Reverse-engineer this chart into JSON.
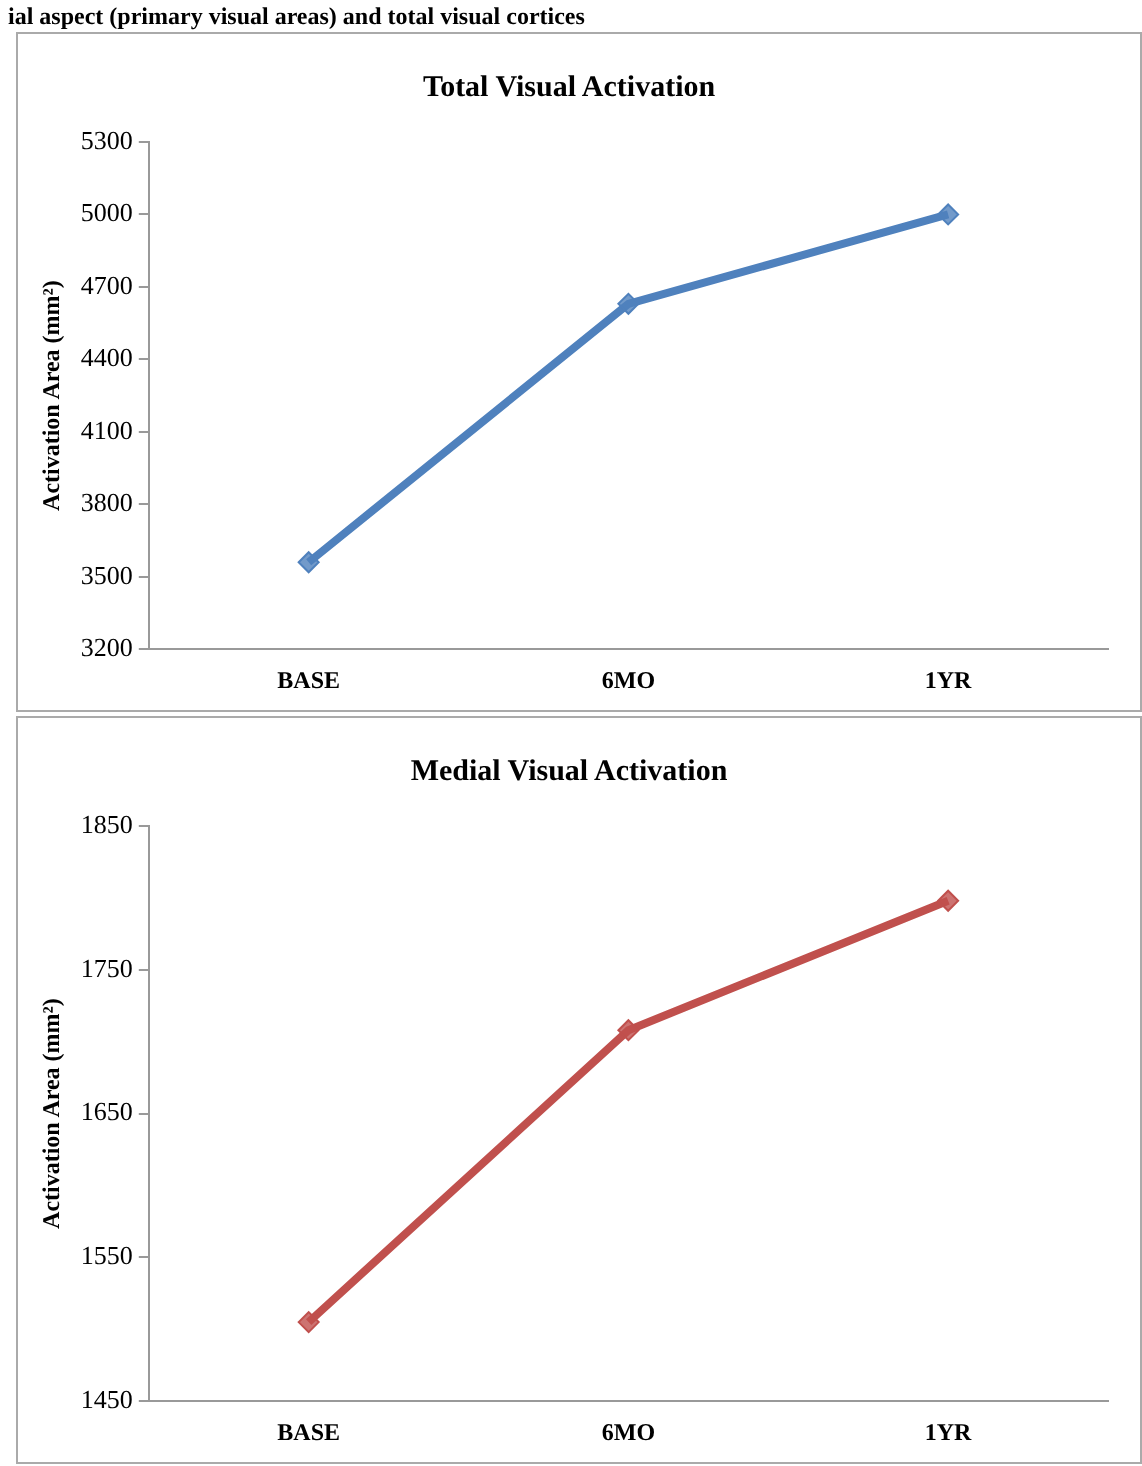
{
  "chart_data": [
    {
      "type": "line",
      "title": "Total Visual Activation",
      "ylabel": "Activation Area (mm²)",
      "annotations": [
        "ial aspect (primary visual areas) and total visual cortices"
      ],
      "categories": [
        "BASE",
        "6MO",
        "1YR"
      ],
      "series": [
        {
          "color": "#4f81bd",
          "values": [
            3560,
            4630,
            5000
          ]
        }
      ],
      "ylim": [
        3200,
        5300
      ],
      "yticks": [
        3200,
        3500,
        3800,
        4100,
        4400,
        4700,
        5000,
        5300
      ],
      "grid": false,
      "legend": false,
      "marker": "diamond",
      "line_style": "solid"
    },
    {
      "type": "line",
      "title": "Medial Visual Activation",
      "ylabel": "Activation Area (mm²)",
      "categories": [
        "BASE",
        "6MO",
        "1YR"
      ],
      "series": [
        {
          "color": "#c0504d",
          "values": [
            1505,
            1708,
            1798
          ]
        }
      ],
      "ylim": [
        1450,
        1850
      ],
      "yticks": [
        1450,
        1550,
        1650,
        1750,
        1850
      ],
      "grid": false,
      "legend": false,
      "marker": "diamond",
      "line_style": "solid"
    }
  ]
}
